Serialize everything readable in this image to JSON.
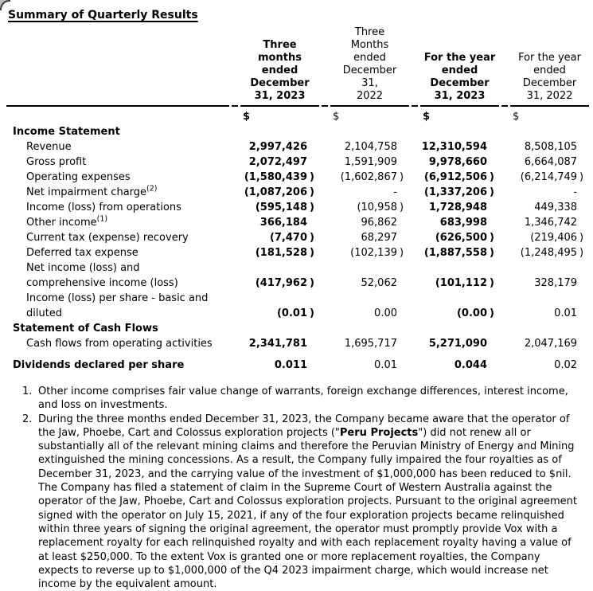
{
  "page": {
    "title": "Summary of Quarterly Results"
  },
  "table": {
    "columns": [
      {
        "lines": [
          "Three",
          "months",
          "ended",
          "December",
          "31, 2023"
        ],
        "bold": true
      },
      {
        "lines": [
          "Three",
          "Months",
          "ended",
          "December",
          "31,",
          "2022"
        ],
        "bold": false
      },
      {
        "lines": [
          "For the year",
          "ended",
          "December",
          "31, 2023"
        ],
        "bold": true
      },
      {
        "lines": [
          "For the year",
          "ended",
          "December",
          "31, 2022"
        ],
        "bold": false
      }
    ],
    "currency_row": [
      "$",
      "$",
      "$",
      "$"
    ],
    "bold_value_columns": [
      0,
      2
    ],
    "rows": [
      {
        "type": "section",
        "label": "Income Statement"
      },
      {
        "type": "item",
        "label": "Revenue",
        "values": [
          "2,997,426",
          "2,104,758",
          "12,310,594",
          "8,508,105"
        ]
      },
      {
        "type": "item",
        "label": "Gross profit",
        "values": [
          "2,072,497",
          "1,591,909",
          "9,978,660",
          "6,664,087"
        ]
      },
      {
        "type": "item",
        "label": "Operating expenses",
        "values": [
          "(1,580,439)",
          "(1,602,867)",
          "(6,912,506)",
          "(6,214,749)"
        ]
      },
      {
        "type": "item",
        "label": "Net impairment charge",
        "sup": "2",
        "values": [
          "(1,087,206)",
          "-",
          "(1,337,206)",
          "-"
        ]
      },
      {
        "type": "item",
        "label": "Income (loss) from operations",
        "values": [
          "(595,148)",
          "(10,958)",
          "1,728,948",
          "449,338"
        ]
      },
      {
        "type": "item",
        "label": "Other income",
        "sup": "1",
        "values": [
          "366,184",
          "96,862",
          "683,998",
          "1,346,742"
        ]
      },
      {
        "type": "item",
        "label": "Current tax (expense) recovery",
        "values": [
          "(7,470)",
          "68,297",
          "(626,500)",
          "(219,406)"
        ]
      },
      {
        "type": "item",
        "label": "Deferred tax expense",
        "values": [
          "(181,528)",
          "(102,139)",
          "(1,887,558)",
          "(1,248,495)"
        ]
      },
      {
        "type": "item",
        "label": "Net income (loss) and",
        "label2": "comprehensive income (loss)",
        "values": [
          "(417,962)",
          "52,062",
          "(101,112)",
          "328,179"
        ]
      },
      {
        "type": "item",
        "label": "Income (loss) per share - basic and",
        "label2": "diluted",
        "values": [
          "(0.01)",
          "0.00",
          "(0.00)",
          "0.01"
        ]
      },
      {
        "type": "section",
        "label": "Statement of Cash Flows"
      },
      {
        "type": "item",
        "label": "Cash flows from operating activities",
        "values": [
          "2,341,781",
          "1,695,717",
          "5,271,090",
          "2,047,169"
        ]
      },
      {
        "type": "total",
        "label": "Dividends declared per share",
        "values": [
          "0.011",
          "0.01",
          "0.044",
          "0.02"
        ]
      }
    ]
  },
  "footnotes": {
    "note1": {
      "num": "1.",
      "text": "Other income comprises fair value change of warrants, foreign exchange differences, interest income, and loss on investments."
    },
    "note2": {
      "num": "2.",
      "pre": "During the three months ended December 31, 2023, the Company became aware that the operator of the Jaw, Phoebe, Cart and Colossus exploration projects (\"",
      "bold": "Peru Projects",
      "post": "\") did not renew all or substantially all of the relevant mining claims and therefore the Peruvian Ministry of Energy and Mining extinguished the mining concessions. As a result, the Company fully impaired the four royalties as of December 31, 2023, and the carrying value of the investment of $1,000,000 has been reduced to $nil. The Company has filed a statement of claim in the Supreme Court of Western Australia against the operator of the Jaw, Phoebe, Cart and Colossus exploration projects. Pursuant to the original agreement signed with the operator on July 15, 2021, if any of the four exploration projects became relinquished within three years of signing the original agreement, the operator must promptly provide Vox with a replacement royalty for each relinquished royalty and with each replacement royalty having a value of at least $250,000. To the extent Vox is granted one or more replacement royalties, the Company expects to reverse up to $1,000,000 of the Q4 2023 impairment charge, which would increase net income by the equivalent amount."
    }
  }
}
